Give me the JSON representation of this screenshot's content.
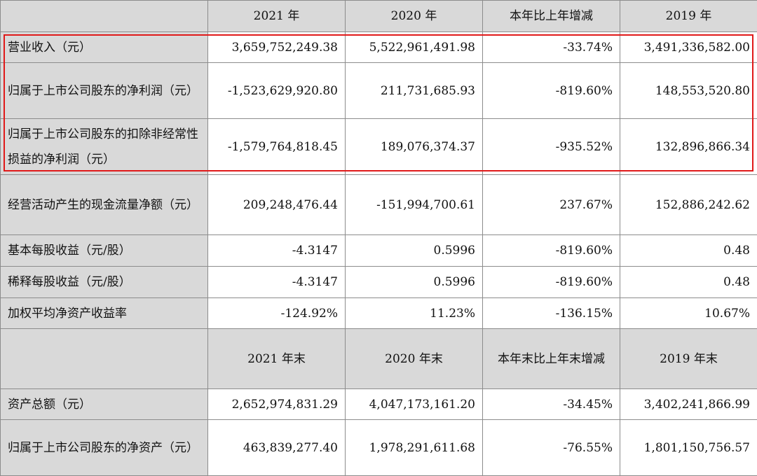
{
  "table": {
    "header1": [
      "2021 年",
      "2020 年",
      "本年比上年增减",
      "2019 年"
    ],
    "header2": [
      "2021 年末",
      "2020 年末",
      "本年末比上年末增减",
      "2019 年末"
    ],
    "rows1": [
      {
        "label": "营业收入（元）",
        "values": [
          "3,659,752,249.38",
          "5,522,961,491.98",
          "-33.74%",
          "3,491,336,582.00"
        ]
      },
      {
        "label": "归属于上市公司股东的净利润（元）",
        "values": [
          "-1,523,629,920.80",
          "211,731,685.93",
          "-819.60%",
          "148,553,520.80"
        ]
      },
      {
        "label": "归属于上市公司股东的扣除非经常性损益的净利润（元）",
        "values": [
          "-1,579,764,818.45",
          "189,076,374.37",
          "-935.52%",
          "132,896,866.34"
        ]
      },
      {
        "label": "经营活动产生的现金流量净额（元）",
        "values": [
          "209,248,476.44",
          "-151,994,700.61",
          "237.67%",
          "152,886,242.62"
        ]
      },
      {
        "label": "基本每股收益（元/股）",
        "values": [
          "-4.3147",
          "0.5996",
          "-819.60%",
          "0.48"
        ]
      },
      {
        "label": "稀释每股收益（元/股）",
        "values": [
          "-4.3147",
          "0.5996",
          "-819.60%",
          "0.48"
        ]
      },
      {
        "label": "加权平均净资产收益率",
        "values": [
          "-124.92%",
          "11.23%",
          "-136.15%",
          "10.67%"
        ]
      }
    ],
    "rows2": [
      {
        "label": "资产总额（元）",
        "values": [
          "2,652,974,831.29",
          "4,047,173,161.20",
          "-34.45%",
          "3,402,241,866.99"
        ]
      },
      {
        "label": "归属于上市公司股东的净资产（元）",
        "values": [
          "463,839,277.40",
          "1,978,291,611.68",
          "-76.55%",
          "1,801,150,756.57"
        ]
      }
    ]
  },
  "highlight_color": "#e01919"
}
